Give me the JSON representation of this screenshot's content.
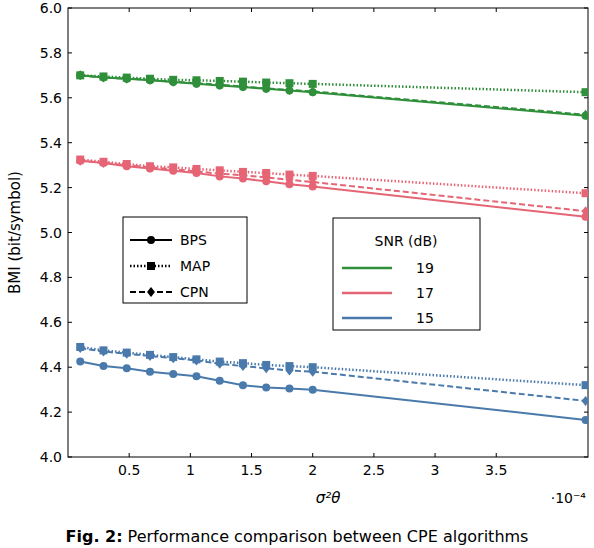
{
  "chart_data": {
    "type": "line",
    "x_label": "σ²θ",
    "x_exponent_label": "·10⁻⁴",
    "y_label": "BMI (bit/symbol)",
    "caption_label": "Fig. 2:",
    "caption": "Performance comparison between CPE algorithms",
    "x": [
      0.1,
      0.29,
      0.48,
      0.67,
      0.86,
      1.05,
      1.24,
      1.43,
      1.62,
      1.81,
      2.0,
      4.23
    ],
    "xlim": [
      0,
      4.25
    ],
    "xticks": [
      0.5,
      1,
      1.5,
      2,
      2.5,
      3,
      3.5
    ],
    "ylim": [
      4,
      6
    ],
    "yticks": [
      {
        "value": 4,
        "label": "4.0"
      },
      {
        "value": 4.2,
        "label": "4.2"
      },
      {
        "value": 4.4,
        "label": "4.4"
      },
      {
        "value": 4.6,
        "label": "4.6"
      },
      {
        "value": 4.8,
        "label": "4.8"
      },
      {
        "value": 5,
        "label": "5.0"
      },
      {
        "value": 5.2,
        "label": "5.2"
      },
      {
        "value": 5.4,
        "label": "5.4"
      },
      {
        "value": 5.6,
        "label": "5.6"
      },
      {
        "value": 5.8,
        "label": "5.8"
      },
      {
        "value": 6,
        "label": "6.0"
      }
    ],
    "grid": false,
    "algorithms": [
      {
        "name": "BPS",
        "marker": "circle",
        "line_style": "solid"
      },
      {
        "name": "MAP",
        "marker": "square",
        "line_style": "dotted"
      },
      {
        "name": "CPN",
        "marker": "diamond",
        "line_style": "dashed"
      }
    ],
    "snr_title": "SNR (dB)",
    "snr_levels": [
      {
        "name": "19",
        "color": "#2f8f3a"
      },
      {
        "name": "17",
        "color": "#e56575"
      },
      {
        "name": "15",
        "color": "#4a7aab"
      }
    ],
    "series": [
      {
        "algorithm": "BPS",
        "snr": "19",
        "color": "#2f8f3a",
        "marker": "circle",
        "line_style": "solid",
        "values": [
          5.7,
          5.69,
          5.685,
          5.678,
          5.67,
          5.663,
          5.655,
          5.648,
          5.64,
          5.632,
          5.625,
          5.52
        ]
      },
      {
        "algorithm": "MAP",
        "snr": "19",
        "color": "#2f8f3a",
        "marker": "square",
        "line_style": "dotted",
        "values": [
          5.7,
          5.695,
          5.69,
          5.685,
          5.68,
          5.678,
          5.675,
          5.672,
          5.668,
          5.665,
          5.662,
          5.625
        ]
      },
      {
        "algorithm": "CPN",
        "snr": "19",
        "color": "#2f8f3a",
        "marker": "diamond",
        "line_style": "dashed",
        "values": [
          5.7,
          5.69,
          5.685,
          5.68,
          5.672,
          5.665,
          5.658,
          5.65,
          5.642,
          5.635,
          5.628,
          5.525
        ]
      },
      {
        "algorithm": "BPS",
        "snr": "17",
        "color": "#e56575",
        "marker": "circle",
        "line_style": "solid",
        "values": [
          5.32,
          5.31,
          5.295,
          5.285,
          5.275,
          5.265,
          5.25,
          5.24,
          5.228,
          5.215,
          5.205,
          5.07
        ]
      },
      {
        "algorithm": "MAP",
        "snr": "17",
        "color": "#e56575",
        "marker": "square",
        "line_style": "dotted",
        "values": [
          5.325,
          5.315,
          5.305,
          5.295,
          5.29,
          5.283,
          5.277,
          5.27,
          5.265,
          5.258,
          5.252,
          5.175
        ]
      },
      {
        "algorithm": "CPN",
        "snr": "17",
        "color": "#e56575",
        "marker": "diamond",
        "line_style": "dashed",
        "values": [
          5.32,
          5.31,
          5.3,
          5.29,
          5.282,
          5.272,
          5.262,
          5.255,
          5.245,
          5.235,
          5.225,
          5.095
        ]
      },
      {
        "algorithm": "BPS",
        "snr": "15",
        "color": "#4a7aab",
        "marker": "circle",
        "line_style": "solid",
        "values": [
          4.425,
          4.405,
          4.395,
          4.38,
          4.37,
          4.36,
          4.34,
          4.32,
          4.31,
          4.305,
          4.3,
          4.165
        ]
      },
      {
        "algorithm": "MAP",
        "snr": "15",
        "color": "#4a7aab",
        "marker": "square",
        "line_style": "dotted",
        "values": [
          4.49,
          4.475,
          4.465,
          4.455,
          4.445,
          4.435,
          4.425,
          4.418,
          4.41,
          4.405,
          4.4,
          4.32
        ]
      },
      {
        "algorithm": "CPN",
        "snr": "15",
        "color": "#4a7aab",
        "marker": "diamond",
        "line_style": "dashed",
        "values": [
          4.485,
          4.47,
          4.46,
          4.45,
          4.44,
          4.43,
          4.415,
          4.405,
          4.395,
          4.385,
          4.38,
          4.25
        ]
      }
    ]
  }
}
